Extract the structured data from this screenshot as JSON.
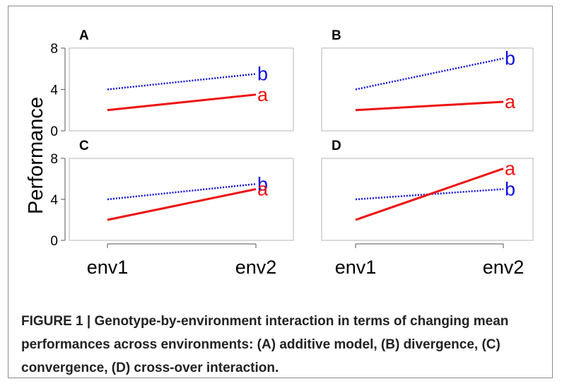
{
  "caption": "FIGURE 1 | Genotype-by-environment interaction in terms of changing mean performances across environments: (A) additive model, (B) divergence, (C) convergence, (D) cross-over interaction.",
  "chart_data": {
    "type": "line",
    "ylabel": "Performance",
    "x_categories": [
      "env1",
      "env2"
    ],
    "ylim": [
      0,
      8
    ],
    "yticks": [
      0,
      4,
      8
    ],
    "colors": {
      "a": "#ee1111",
      "b": "#1111dd"
    },
    "panels": [
      {
        "label": "A",
        "series": [
          {
            "name": "a",
            "values": [
              2.0,
              3.5
            ],
            "line_style": "solid"
          },
          {
            "name": "b",
            "values": [
              4.0,
              5.5
            ],
            "line_style": "dotted"
          }
        ]
      },
      {
        "label": "B",
        "series": [
          {
            "name": "a",
            "values": [
              2.0,
              2.8
            ],
            "line_style": "solid"
          },
          {
            "name": "b",
            "values": [
              4.0,
              7.0
            ],
            "line_style": "dotted"
          }
        ]
      },
      {
        "label": "C",
        "series": [
          {
            "name": "a",
            "values": [
              2.0,
              5.0
            ],
            "line_style": "solid"
          },
          {
            "name": "b",
            "values": [
              4.0,
              5.5
            ],
            "line_style": "dotted"
          }
        ]
      },
      {
        "label": "D",
        "series": [
          {
            "name": "a",
            "values": [
              2.0,
              7.0
            ],
            "line_style": "solid"
          },
          {
            "name": "b",
            "values": [
              4.0,
              5.0
            ],
            "line_style": "dotted"
          }
        ]
      }
    ]
  }
}
